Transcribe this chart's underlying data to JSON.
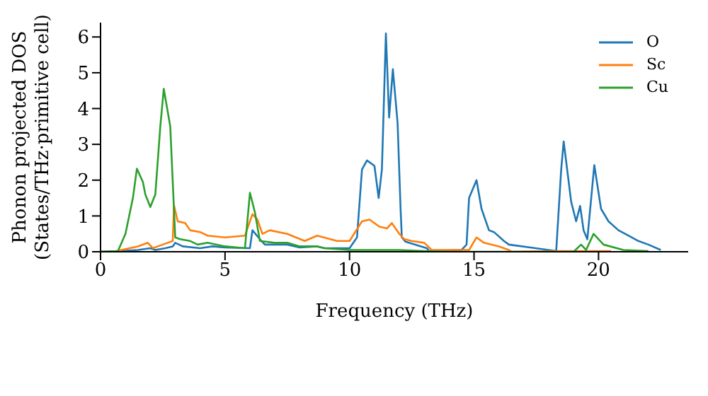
{
  "chart_data": {
    "type": "line",
    "xlabel": "Frequency (THz)",
    "ylabel": "Phonon projected DOS\n(States/THz·primitive cell)",
    "xlim": [
      0,
      23.6
    ],
    "xticks": [
      0,
      5,
      10,
      15,
      20
    ],
    "ylim": [
      0,
      6.4
    ],
    "yticks": [
      0,
      1,
      2,
      3,
      4,
      5,
      6
    ],
    "grid": false,
    "legend": "top right",
    "marker": "none",
    "line_style": "solid",
    "series": [
      {
        "name": "O",
        "color": "#1f77b4",
        "x": [
          0,
          0.8,
          1.5,
          2,
          2.2,
          2.6,
          2.9,
          3.0,
          3.3,
          4,
          4.5,
          5,
          6,
          6.1,
          6.4,
          6.6,
          7.5,
          8,
          8.7,
          9,
          10,
          10.3,
          10.5,
          10.7,
          11.0,
          11.17,
          11.3,
          11.46,
          11.59,
          11.74,
          11.93,
          12.05,
          12.1,
          12.25,
          13.1,
          13.2,
          14.5,
          14.7,
          14.8,
          15.1,
          15.3,
          15.6,
          15.8,
          16.2,
          16.4,
          18.3,
          18.5,
          18.6,
          18.9,
          19.1,
          19.26,
          19.4,
          19.55,
          19.83,
          20.1,
          20.4,
          20.8,
          21.2,
          21.6,
          22,
          22.5
        ],
        "values": [
          0,
          0.02,
          0.05,
          0.1,
          0.05,
          0.1,
          0.15,
          0.25,
          0.15,
          0.1,
          0.15,
          0.12,
          0.1,
          0.6,
          0.35,
          0.2,
          0.2,
          0.12,
          0.15,
          0.1,
          0.1,
          0.4,
          2.3,
          2.55,
          2.4,
          1.5,
          2.3,
          6.1,
          3.75,
          5.1,
          3.6,
          1.2,
          0.4,
          0.28,
          0.1,
          0.02,
          0.05,
          0.2,
          1.5,
          2.0,
          1.2,
          0.6,
          0.55,
          0.3,
          0.2,
          0.02,
          2.3,
          3.08,
          1.4,
          0.85,
          1.28,
          0.6,
          0.35,
          2.42,
          1.2,
          0.85,
          0.6,
          0.45,
          0.3,
          0.2,
          0.05
        ]
      },
      {
        "name": "Sc",
        "color": "#ff7f0e",
        "x": [
          0,
          0.5,
          1.5,
          1.9,
          2.1,
          2.5,
          2.9,
          2.95,
          3.1,
          3.4,
          3.6,
          4,
          4.3,
          5,
          5.8,
          6.1,
          6.3,
          6.5,
          6.8,
          7.5,
          8.2,
          8.7,
          9.5,
          10,
          10.5,
          10.8,
          11.2,
          11.5,
          11.7,
          12.0,
          12.2,
          12.5,
          13,
          13.3,
          14.8,
          15.1,
          15.4,
          16.0,
          16.4,
          16.5,
          18.5,
          20.5
        ],
        "values": [
          0,
          0,
          0.15,
          0.25,
          0.1,
          0.2,
          0.3,
          1.3,
          0.85,
          0.8,
          0.6,
          0.55,
          0.45,
          0.4,
          0.45,
          1.05,
          0.9,
          0.5,
          0.6,
          0.5,
          0.3,
          0.45,
          0.3,
          0.3,
          0.85,
          0.9,
          0.7,
          0.65,
          0.8,
          0.5,
          0.35,
          0.3,
          0.25,
          0.05,
          0.05,
          0.4,
          0.25,
          0.15,
          0.05,
          0,
          0.02,
          0.02
        ]
      },
      {
        "name": "Cu",
        "color": "#2ca02c",
        "x": [
          0,
          0.7,
          1.0,
          1.3,
          1.46,
          1.7,
          1.8,
          2.0,
          2.2,
          2.4,
          2.54,
          2.8,
          3.0,
          3.2,
          3.6,
          3.9,
          4.3,
          5,
          5.8,
          6.0,
          6.2,
          6.4,
          7,
          7.5,
          8,
          8.7,
          9,
          10,
          11,
          12,
          13,
          14,
          19,
          19.3,
          19.5,
          19.8,
          20.2,
          21,
          22
        ],
        "values": [
          0,
          0.02,
          0.5,
          1.5,
          2.32,
          1.95,
          1.6,
          1.25,
          1.6,
          3.5,
          4.55,
          3.5,
          0.4,
          0.35,
          0.3,
          0.2,
          0.25,
          0.15,
          0.1,
          1.65,
          1.1,
          0.3,
          0.25,
          0.25,
          0.15,
          0.15,
          0.1,
          0.05,
          0.05,
          0.05,
          0.02,
          0,
          0,
          0.2,
          0.05,
          0.5,
          0.2,
          0.05,
          0.02
        ]
      }
    ]
  }
}
